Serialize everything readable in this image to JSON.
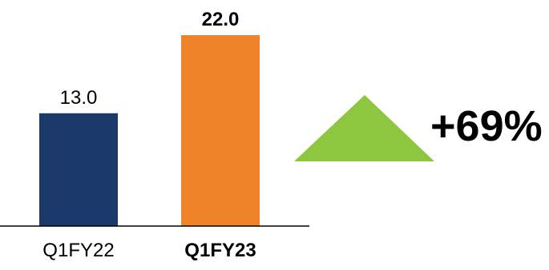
{
  "chart_data": {
    "type": "bar",
    "categories": [
      "Q1FY22",
      "Q1FY23"
    ],
    "values": [
      13.0,
      22.0
    ],
    "value_labels": [
      "13.0",
      "22.0"
    ],
    "bar_colors": [
      "#1b3a6b",
      "#ee832a"
    ],
    "category_label_bold": [
      false,
      true
    ],
    "value_label_bold": [
      false,
      true
    ],
    "ylim": [
      0,
      22.0
    ],
    "grid": false,
    "title": "",
    "xlabel": "",
    "ylabel": ""
  },
  "change_indicator": {
    "text": "+69%",
    "icon": "up-triangle-icon",
    "color": "#8dc63f"
  },
  "colors": {
    "axis": "#000000",
    "text": "#000000"
  }
}
